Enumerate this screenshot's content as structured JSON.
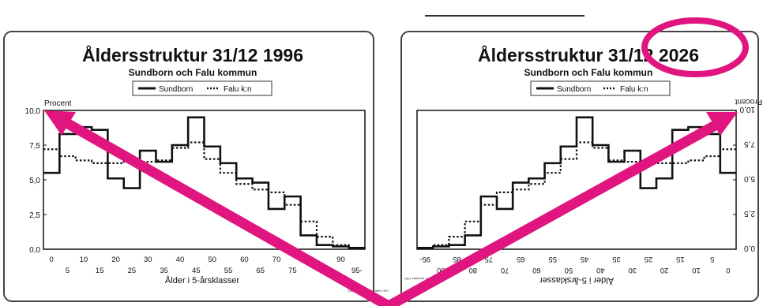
{
  "chart_data": [
    {
      "type": "line",
      "title": "Åldersstruktur 31/12 1996",
      "subtitle": "Sundborn och Falu kommun",
      "ylabel": "Procent",
      "xlabel": "Ålder i 5-årsklasser",
      "ylim": [
        0,
        10
      ],
      "yticks": [
        "0,0",
        "2,5",
        "5,0",
        "7,5",
        "10,0"
      ],
      "xticks_top": [
        "0",
        "10",
        "20",
        "30",
        "40",
        "50",
        "60",
        "70",
        "80",
        "90"
      ],
      "xticks_bottom": [
        "5",
        "15",
        "25",
        "35",
        "45",
        "55",
        "65",
        "75",
        "85",
        "95-"
      ],
      "categories": [
        "0-4",
        "5-9",
        "10-14",
        "15-19",
        "20-24",
        "25-29",
        "30-34",
        "35-39",
        "40-44",
        "45-49",
        "50-54",
        "55-59",
        "60-64",
        "65-69",
        "70-74",
        "75-79",
        "80-84",
        "85-89",
        "90-94",
        "95-"
      ],
      "series": [
        {
          "name": "Sundborn",
          "values": [
            5.5,
            8.3,
            8.8,
            8.6,
            5.1,
            4.4,
            7.1,
            6.3,
            7.5,
            9.5,
            7.4,
            6.2,
            5.1,
            4.8,
            2.9,
            3.8,
            1.0,
            0.3,
            0.2,
            0.1
          ]
        },
        {
          "name": "Falu k:n",
          "values": [
            7.2,
            6.7,
            6.4,
            6.2,
            6.2,
            6.3,
            6.3,
            6.4,
            7.3,
            7.7,
            6.5,
            5.5,
            4.7,
            4.3,
            4.1,
            3.2,
            2.0,
            0.9,
            0.3,
            0.1
          ]
        }
      ],
      "footnote": "Samhällsbild 1 kvartalet 1997"
    },
    {
      "type": "line",
      "title": "Åldersstruktur 31/12 2026",
      "subtitle": "Sundborn och Falu kommun",
      "ylabel": "Procent",
      "xlabel": "Ålder i 5-årsklasser",
      "ylim": [
        0,
        10
      ],
      "yticks": [
        "0,0",
        "2,5",
        "5,0",
        "7,5",
        "10,0"
      ],
      "xticks_top": [
        "0",
        "10",
        "20",
        "30",
        "40",
        "50",
        "60",
        "70",
        "80",
        "90"
      ],
      "xticks_bottom": [
        "5",
        "15",
        "25",
        "35",
        "45",
        "55",
        "65",
        "75",
        "85",
        "95-"
      ],
      "mirrored": true,
      "categories": [
        "0-4",
        "5-9",
        "10-14",
        "15-19",
        "20-24",
        "25-29",
        "30-34",
        "35-39",
        "40-44",
        "45-49",
        "50-54",
        "55-59",
        "60-64",
        "65-69",
        "70-74",
        "75-79",
        "80-84",
        "85-89",
        "90-94",
        "95-"
      ],
      "series": [
        {
          "name": "Sundborn",
          "values": [
            5.5,
            8.3,
            8.8,
            8.6,
            5.1,
            4.4,
            7.1,
            6.3,
            7.5,
            9.5,
            7.4,
            6.2,
            5.1,
            4.8,
            2.9,
            3.8,
            1.0,
            0.3,
            0.2,
            0.1
          ]
        },
        {
          "name": "Falu k:n",
          "values": [
            7.2,
            6.7,
            6.4,
            6.2,
            6.2,
            6.3,
            6.3,
            6.4,
            7.3,
            7.7,
            6.5,
            5.5,
            4.7,
            4.3,
            4.1,
            3.2,
            2.0,
            0.9,
            0.3,
            0.1
          ]
        }
      ],
      "footnote": "Samhällsbild 1 kvartalet 1997"
    }
  ],
  "annotations": {
    "color": "#e0157f",
    "circle_target": "2026 in right title",
    "arrows": [
      "from bottom-center up-left to 10,0 on left chart",
      "from bottom-center up-right to 10,0 on right chart"
    ]
  }
}
